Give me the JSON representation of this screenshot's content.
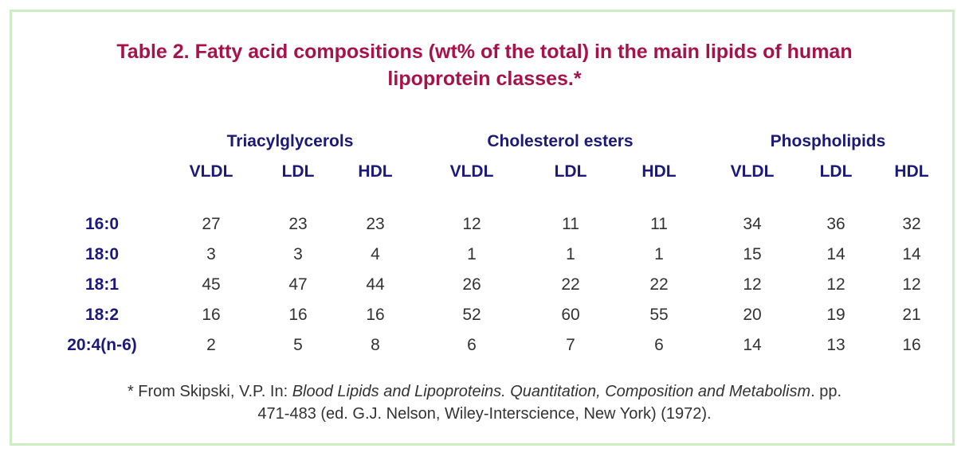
{
  "title": {
    "line1": "Table 2. Fatty acid compositions (wt% of the total) in the main lipids of human",
    "line2": "lipoprotein classes.*"
  },
  "groups": [
    "Triacylglycerols",
    "Cholesterol esters",
    "Phospholipids"
  ],
  "subheaders": [
    "VLDL",
    "LDL",
    "HDL",
    "VLDL",
    "LDL",
    "HDL",
    "VLDL",
    "LDL",
    "HDL"
  ],
  "rows": [
    {
      "label": "16:0",
      "values": [
        "27",
        "23",
        "23",
        "12",
        "11",
        "11",
        "34",
        "36",
        "32"
      ]
    },
    {
      "label": "18:0",
      "values": [
        "3",
        "3",
        "4",
        "1",
        "1",
        "1",
        "15",
        "14",
        "14"
      ]
    },
    {
      "label": "18:1",
      "values": [
        "45",
        "47",
        "44",
        "26",
        "22",
        "22",
        "12",
        "12",
        "12"
      ]
    },
    {
      "label": "18:2",
      "values": [
        "16",
        "16",
        "16",
        "52",
        "60",
        "55",
        "20",
        "19",
        "21"
      ]
    },
    {
      "label": "20:4(n-6)",
      "values": [
        "2",
        "5",
        "8",
        "6",
        "7",
        "6",
        "14",
        "13",
        "16"
      ]
    }
  ],
  "footnote": {
    "prefix": "* From Skipski, V.P. In: ",
    "italic": "Blood Lipids and Lipoproteins. Quantitation, Composition and Metabolism",
    "suffix": ". pp.",
    "line2": "471-483 (ed. G.J. Nelson, Wiley-Interscience, New York) (1972)."
  },
  "colors": {
    "title": "#a8124a",
    "header": "#1c1a78",
    "border": "#cdeec4",
    "text": "#333333"
  }
}
